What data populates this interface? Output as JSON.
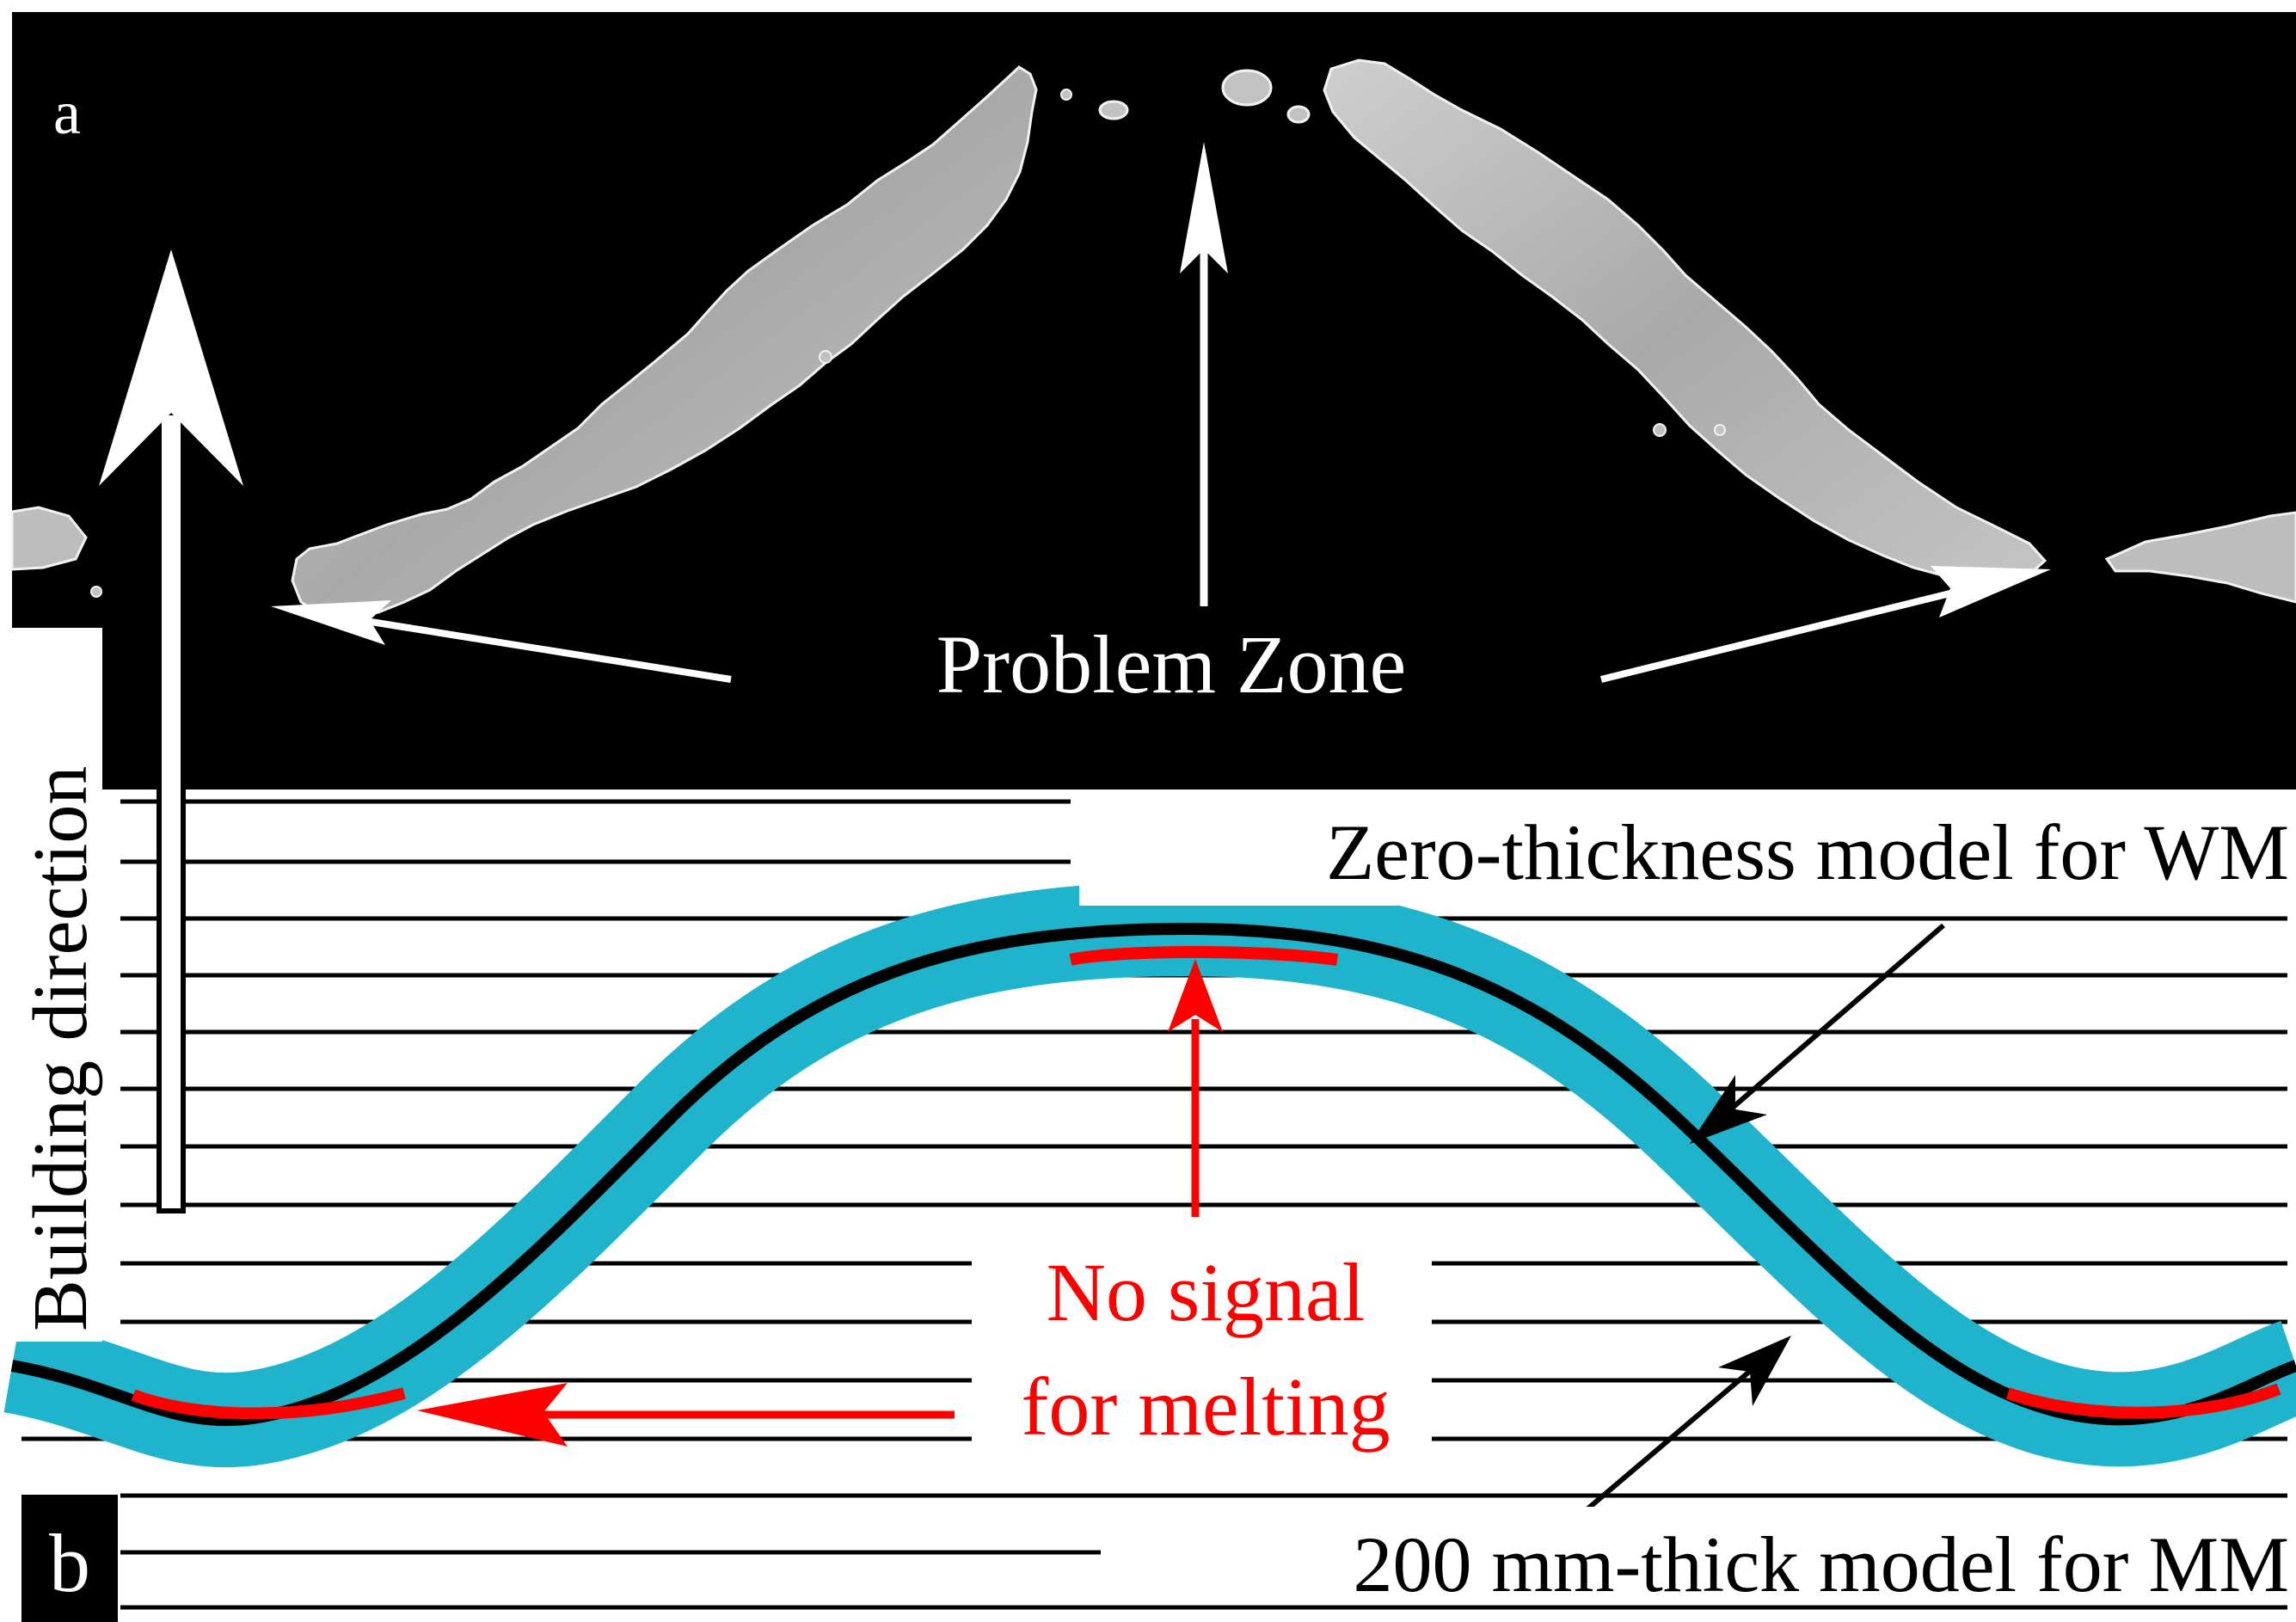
{
  "panel_a": {
    "letter": "a",
    "problem_zone_label": "Problem Zone"
  },
  "panel_b": {
    "letter": "b",
    "building_direction_label": "Building direction",
    "zero_thickness_label": "Zero-thickness model for WM",
    "thick_model_label": "200 mm-thick model for MM",
    "no_signal_line1": "No signal",
    "no_signal_line2": "for melting"
  },
  "colors": {
    "background_a": "#000000",
    "specimen": "#b8b8b8",
    "band": "#1fb3cc",
    "curve": "#000000",
    "no_signal": "#ff0000",
    "layer_lines": "#000000"
  }
}
